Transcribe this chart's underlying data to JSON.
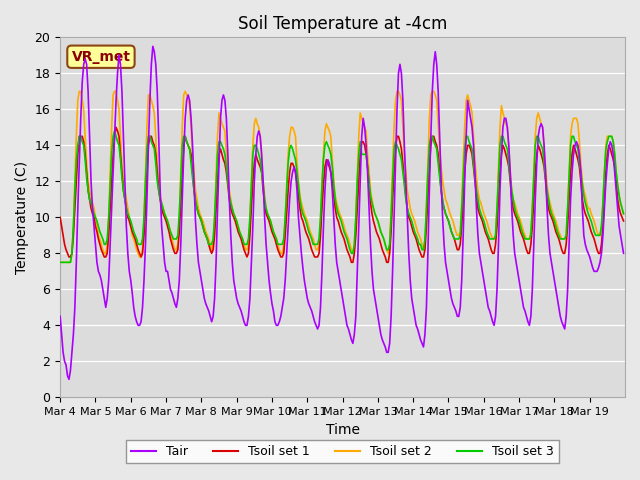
{
  "title": "Soil Temperature at -4cm",
  "xlabel": "Time",
  "ylabel": "Temperature (C)",
  "ylim": [
    0,
    20
  ],
  "annotation_text": "VR_met",
  "line_colors": {
    "Tair": "#aa00ff",
    "Tsoil_set1": "#dd0000",
    "Tsoil_set2": "#ffaa00",
    "Tsoil_set3": "#00cc00"
  },
  "legend_labels": [
    "Tair",
    "Tsoil set 1",
    "Tsoil set 2",
    "Tsoil set 3"
  ],
  "x_tick_labels": [
    "Mar 4",
    "Mar 5",
    "Mar 6",
    "Mar 7",
    "Mar 8",
    "Mar 9",
    "Mar 10",
    "Mar 11",
    "Mar 12",
    "Mar 13",
    "Mar 14",
    "Mar 15",
    "Mar 16",
    "Mar 17",
    "Mar 18",
    "Mar 19"
  ],
  "Tair_values": [
    4.5,
    3.5,
    2.5,
    2.0,
    1.8,
    1.2,
    1.0,
    1.5,
    2.5,
    3.5,
    5.0,
    7.5,
    10.5,
    13.0,
    15.5,
    17.5,
    18.5,
    18.8,
    18.5,
    17.0,
    14.5,
    12.0,
    10.5,
    9.5,
    8.5,
    7.5,
    7.0,
    6.8,
    6.5,
    6.0,
    5.5,
    5.0,
    5.5,
    6.5,
    8.5,
    10.5,
    12.5,
    14.5,
    16.5,
    18.0,
    19.0,
    18.5,
    17.0,
    14.5,
    12.0,
    9.5,
    8.0,
    7.0,
    6.5,
    5.8,
    5.0,
    4.5,
    4.2,
    4.0,
    4.0,
    4.2,
    5.0,
    6.5,
    8.5,
    11.0,
    14.0,
    16.5,
    18.5,
    19.5,
    19.2,
    18.5,
    17.0,
    14.5,
    11.5,
    9.5,
    8.5,
    7.5,
    7.0,
    7.0,
    6.5,
    6.0,
    5.8,
    5.5,
    5.2,
    5.0,
    5.5,
    6.5,
    8.5,
    11.0,
    13.5,
    15.5,
    16.5,
    16.8,
    16.5,
    15.5,
    14.0,
    12.0,
    9.8,
    8.5,
    7.5,
    7.0,
    6.5,
    6.0,
    5.5,
    5.2,
    5.0,
    4.8,
    4.5,
    4.2,
    4.5,
    5.5,
    7.5,
    10.5,
    13.0,
    15.5,
    16.5,
    16.8,
    16.5,
    15.5,
    13.5,
    11.0,
    9.0,
    7.5,
    6.5,
    6.0,
    5.5,
    5.2,
    5.0,
    4.8,
    4.5,
    4.2,
    4.0,
    4.0,
    4.5,
    5.5,
    7.5,
    9.5,
    12.0,
    13.5,
    14.5,
    14.8,
    14.5,
    13.5,
    12.0,
    10.0,
    8.5,
    7.5,
    6.5,
    5.8,
    5.2,
    4.8,
    4.2,
    4.0,
    4.0,
    4.2,
    4.5,
    5.0,
    5.5,
    6.5,
    8.0,
    9.5,
    11.0,
    12.0,
    12.5,
    12.8,
    12.5,
    11.5,
    10.0,
    9.0,
    8.0,
    7.2,
    6.5,
    6.0,
    5.5,
    5.2,
    5.0,
    4.8,
    4.5,
    4.2,
    4.0,
    3.8,
    4.0,
    5.0,
    7.0,
    9.5,
    11.5,
    12.8,
    13.2,
    13.0,
    12.5,
    11.5,
    10.0,
    8.5,
    7.5,
    7.0,
    6.5,
    6.0,
    5.5,
    5.0,
    4.5,
    4.0,
    3.8,
    3.5,
    3.2,
    3.0,
    3.5,
    4.5,
    7.0,
    9.5,
    12.0,
    14.5,
    15.5,
    15.0,
    14.0,
    12.5,
    10.5,
    8.5,
    7.0,
    6.0,
    5.5,
    5.0,
    4.5,
    4.0,
    3.5,
    3.2,
    3.0,
    2.8,
    2.5,
    2.5,
    3.0,
    4.5,
    7.0,
    10.0,
    13.0,
    16.0,
    18.0,
    18.5,
    18.0,
    16.5,
    14.0,
    12.0,
    10.0,
    8.0,
    6.5,
    5.5,
    5.0,
    4.5,
    4.0,
    3.8,
    3.5,
    3.2,
    3.0,
    2.8,
    3.5,
    5.0,
    8.0,
    11.5,
    14.5,
    17.0,
    18.5,
    19.2,
    18.5,
    17.0,
    14.5,
    12.0,
    10.0,
    8.5,
    7.5,
    7.0,
    6.5,
    6.0,
    5.5,
    5.2,
    5.0,
    4.8,
    4.5,
    4.5,
    5.0,
    6.5,
    9.0,
    12.0,
    14.5,
    16.5,
    16.0,
    15.5,
    15.0,
    14.0,
    12.5,
    10.5,
    9.0,
    8.0,
    7.5,
    7.0,
    6.5,
    6.0,
    5.5,
    5.0,
    4.8,
    4.5,
    4.2,
    4.0,
    4.5,
    6.0,
    8.5,
    11.5,
    13.5,
    15.0,
    15.5,
    15.5,
    15.0,
    14.0,
    12.5,
    10.5,
    9.0,
    8.0,
    7.5,
    7.0,
    6.5,
    6.0,
    5.5,
    5.0,
    4.8,
    4.5,
    4.2,
    4.0,
    4.5,
    6.0,
    8.5,
    11.0,
    13.0,
    14.5,
    15.0,
    15.2,
    15.0,
    14.0,
    12.5,
    10.5,
    9.0,
    8.0,
    7.5,
    7.0,
    6.5,
    6.0,
    5.5,
    5.0,
    4.5,
    4.2,
    4.0,
    3.8,
    4.5,
    6.0,
    8.5,
    11.0,
    12.5,
    13.5,
    14.0,
    14.2,
    14.0,
    13.5,
    12.5,
    10.5,
    9.0,
    8.5,
    8.2,
    8.0,
    7.8,
    7.5,
    7.2,
    7.0,
    7.0,
    7.0,
    7.2,
    7.5,
    8.0,
    9.0,
    10.5,
    12.0,
    13.0,
    13.8,
    14.2,
    14.0,
    13.5,
    12.5,
    11.5,
    10.5,
    9.5,
    9.0,
    8.5,
    8.0
  ],
  "Tsoil1_values": [
    10.0,
    9.5,
    9.0,
    8.5,
    8.2,
    8.0,
    7.8,
    7.8,
    8.0,
    9.0,
    10.5,
    12.0,
    13.5,
    14.5,
    14.5,
    14.5,
    14.2,
    13.5,
    12.5,
    11.5,
    11.0,
    10.5,
    10.2,
    10.0,
    9.5,
    9.2,
    8.8,
    8.5,
    8.2,
    8.0,
    7.8,
    7.8,
    8.0,
    9.0,
    10.5,
    12.0,
    13.5,
    14.5,
    15.0,
    14.8,
    14.5,
    13.5,
    12.5,
    11.5,
    11.0,
    10.5,
    10.0,
    9.8,
    9.5,
    9.2,
    9.0,
    8.8,
    8.5,
    8.2,
    8.0,
    7.8,
    8.0,
    9.0,
    10.5,
    12.5,
    14.0,
    14.5,
    14.5,
    14.2,
    14.0,
    13.5,
    12.5,
    11.5,
    11.0,
    10.5,
    10.2,
    10.0,
    9.8,
    9.5,
    9.2,
    8.8,
    8.5,
    8.2,
    8.0,
    8.0,
    8.2,
    9.2,
    10.8,
    12.5,
    14.0,
    14.5,
    14.2,
    14.0,
    13.8,
    13.5,
    12.5,
    11.5,
    10.8,
    10.5,
    10.2,
    10.0,
    9.8,
    9.5,
    9.2,
    9.0,
    8.8,
    8.5,
    8.2,
    8.0,
    8.2,
    9.0,
    10.5,
    12.0,
    13.5,
    13.8,
    13.5,
    13.2,
    13.0,
    12.5,
    11.8,
    11.0,
    10.5,
    10.2,
    10.0,
    9.8,
    9.5,
    9.2,
    9.0,
    8.8,
    8.5,
    8.2,
    8.0,
    7.8,
    8.0,
    9.0,
    10.5,
    12.0,
    13.0,
    13.5,
    13.2,
    13.0,
    12.8,
    12.5,
    11.5,
    10.8,
    10.2,
    10.0,
    9.8,
    9.5,
    9.2,
    9.0,
    8.8,
    8.5,
    8.2,
    8.0,
    7.8,
    7.8,
    8.0,
    9.0,
    10.2,
    11.5,
    12.5,
    13.0,
    13.0,
    12.8,
    12.5,
    12.0,
    11.2,
    10.5,
    10.0,
    9.8,
    9.5,
    9.2,
    9.0,
    8.8,
    8.5,
    8.2,
    8.0,
    7.8,
    7.8,
    7.8,
    8.0,
    9.0,
    10.5,
    11.8,
    12.8,
    13.2,
    13.0,
    12.8,
    12.5,
    12.0,
    11.2,
    10.5,
    10.0,
    9.8,
    9.5,
    9.2,
    9.0,
    8.8,
    8.5,
    8.2,
    8.0,
    7.8,
    7.5,
    7.5,
    8.0,
    9.0,
    10.5,
    12.0,
    13.5,
    14.2,
    14.2,
    14.0,
    13.5,
    12.8,
    11.8,
    10.8,
    10.2,
    9.8,
    9.5,
    9.2,
    9.0,
    8.8,
    8.5,
    8.2,
    8.0,
    7.8,
    7.5,
    7.5,
    8.0,
    9.2,
    11.0,
    12.5,
    13.8,
    14.5,
    14.5,
    14.2,
    13.8,
    13.0,
    12.0,
    11.2,
    10.5,
    10.0,
    9.8,
    9.5,
    9.2,
    9.0,
    8.8,
    8.5,
    8.2,
    8.0,
    7.8,
    7.8,
    8.2,
    9.5,
    11.2,
    12.8,
    14.0,
    14.5,
    14.5,
    14.2,
    14.0,
    13.5,
    12.5,
    11.5,
    10.8,
    10.5,
    10.2,
    10.0,
    9.8,
    9.5,
    9.2,
    9.0,
    8.8,
    8.5,
    8.2,
    8.2,
    8.5,
    9.5,
    11.0,
    12.5,
    13.5,
    14.0,
    14.0,
    13.8,
    13.5,
    12.8,
    12.0,
    11.2,
    10.5,
    10.2,
    10.0,
    9.8,
    9.5,
    9.2,
    9.0,
    8.8,
    8.5,
    8.2,
    8.0,
    8.0,
    8.5,
    9.5,
    11.0,
    12.5,
    13.5,
    14.0,
    13.8,
    13.5,
    13.2,
    12.8,
    12.0,
    11.0,
    10.5,
    10.2,
    10.0,
    9.8,
    9.5,
    9.2,
    9.0,
    8.8,
    8.5,
    8.2,
    8.0,
    8.0,
    8.5,
    9.5,
    11.0,
    12.5,
    13.5,
    14.0,
    13.8,
    13.5,
    13.2,
    12.8,
    12.0,
    11.0,
    10.5,
    10.2,
    10.0,
    9.8,
    9.5,
    9.2,
    9.0,
    8.8,
    8.5,
    8.2,
    8.0,
    8.0,
    8.5,
    9.5,
    11.0,
    12.5,
    13.5,
    14.0,
    13.8,
    13.5,
    13.2,
    12.8,
    12.0,
    11.0,
    10.5,
    10.2,
    10.0,
    9.8,
    9.5,
    9.2,
    9.0,
    8.8,
    8.5,
    8.2,
    8.0,
    8.0,
    8.5,
    9.5,
    11.0,
    12.5,
    13.5,
    14.0,
    13.8,
    13.5,
    13.2,
    12.8,
    12.0,
    11.0,
    10.5,
    10.2,
    10.0,
    9.8
  ],
  "Tsoil2_values": [
    7.5,
    7.5,
    7.5,
    7.5,
    7.5,
    7.5,
    7.5,
    7.5,
    8.0,
    9.5,
    12.0,
    14.5,
    16.5,
    17.0,
    17.0,
    16.5,
    16.0,
    14.5,
    13.0,
    12.0,
    11.5,
    11.0,
    10.8,
    10.5,
    10.0,
    9.5,
    9.0,
    8.8,
    8.5,
    8.2,
    8.0,
    8.0,
    8.5,
    10.0,
    12.5,
    15.0,
    16.8,
    17.0,
    17.0,
    16.5,
    16.0,
    14.5,
    13.0,
    12.0,
    11.5,
    11.0,
    10.5,
    10.0,
    9.5,
    9.0,
    8.8,
    8.5,
    8.2,
    8.0,
    7.8,
    7.8,
    8.2,
    9.8,
    12.5,
    15.0,
    16.8,
    16.8,
    16.5,
    16.2,
    15.8,
    14.5,
    13.0,
    12.0,
    11.2,
    10.8,
    10.5,
    10.2,
    10.0,
    9.8,
    9.5,
    9.2,
    8.8,
    8.5,
    8.2,
    8.2,
    8.5,
    10.0,
    12.5,
    15.0,
    16.8,
    17.0,
    16.8,
    16.5,
    16.2,
    15.0,
    13.5,
    12.5,
    11.5,
    11.0,
    10.5,
    10.2,
    10.0,
    9.8,
    9.5,
    9.2,
    9.0,
    8.8,
    8.5,
    8.2,
    8.5,
    10.0,
    12.2,
    14.5,
    15.8,
    15.5,
    15.2,
    15.0,
    14.8,
    13.5,
    12.5,
    11.5,
    11.0,
    10.5,
    10.2,
    10.0,
    9.8,
    9.5,
    9.2,
    9.0,
    8.8,
    8.5,
    8.2,
    8.2,
    8.5,
    9.8,
    12.0,
    14.0,
    15.2,
    15.5,
    15.2,
    15.0,
    14.5,
    13.2,
    12.0,
    11.2,
    10.5,
    10.2,
    10.0,
    9.8,
    9.5,
    9.2,
    9.0,
    8.8,
    8.5,
    8.2,
    8.0,
    8.0,
    8.5,
    9.8,
    11.8,
    13.5,
    14.5,
    15.0,
    15.0,
    14.8,
    14.5,
    13.0,
    12.0,
    11.2,
    10.8,
    10.5,
    10.2,
    10.0,
    9.8,
    9.5,
    9.2,
    9.0,
    8.8,
    8.5,
    8.2,
    8.2,
    8.5,
    9.8,
    11.8,
    13.5,
    14.8,
    15.2,
    15.0,
    14.8,
    14.5,
    13.2,
    12.0,
    11.2,
    10.8,
    10.5,
    10.2,
    10.0,
    9.8,
    9.5,
    9.2,
    9.0,
    8.8,
    8.5,
    8.2,
    8.0,
    8.5,
    10.0,
    12.2,
    14.5,
    15.8,
    15.5,
    15.2,
    15.0,
    14.8,
    13.5,
    12.5,
    11.5,
    11.0,
    10.5,
    10.2,
    10.0,
    9.8,
    9.5,
    9.2,
    9.0,
    8.8,
    8.5,
    8.2,
    8.0,
    8.5,
    10.5,
    12.8,
    15.0,
    16.5,
    17.0,
    17.0,
    16.8,
    16.5,
    15.0,
    13.5,
    12.5,
    11.5,
    11.0,
    10.5,
    10.2,
    10.0,
    9.8,
    9.5,
    9.2,
    9.0,
    8.8,
    8.5,
    8.2,
    8.5,
    10.5,
    13.0,
    15.5,
    16.8,
    17.0,
    17.0,
    16.8,
    16.5,
    15.2,
    13.8,
    12.8,
    12.0,
    11.5,
    11.0,
    10.8,
    10.5,
    10.2,
    10.0,
    9.8,
    9.5,
    9.2,
    9.0,
    9.0,
    9.2,
    10.8,
    13.0,
    15.0,
    16.5,
    16.8,
    16.5,
    16.2,
    15.8,
    14.5,
    13.2,
    12.2,
    11.5,
    11.0,
    10.8,
    10.5,
    10.2,
    10.0,
    9.8,
    9.5,
    9.2,
    9.0,
    8.8,
    8.8,
    9.0,
    10.5,
    12.8,
    15.0,
    16.2,
    15.8,
    15.5,
    15.2,
    15.0,
    13.8,
    12.5,
    11.5,
    11.0,
    10.8,
    10.5,
    10.2,
    10.0,
    9.8,
    9.5,
    9.2,
    9.0,
    8.8,
    8.8,
    8.8,
    9.2,
    10.5,
    12.5,
    14.5,
    15.5,
    15.8,
    15.5,
    15.2,
    15.0,
    13.8,
    12.8,
    11.8,
    11.2,
    10.8,
    10.5,
    10.2,
    10.0,
    9.8,
    9.5,
    9.2,
    9.0,
    8.8,
    8.8,
    8.8,
    9.0,
    10.5,
    12.5,
    14.5,
    15.2,
    15.5,
    15.5,
    15.5,
    15.2,
    14.2,
    13.0,
    12.0,
    11.5,
    11.2,
    10.8,
    10.5,
    10.5,
    10.2,
    10.0,
    9.8,
    9.5,
    9.2,
    9.0,
    9.0,
    9.5,
    10.8,
    12.5,
    14.0,
    14.5,
    14.5,
    14.5,
    14.5,
    14.2,
    13.5,
    12.5,
    11.8,
    11.2,
    10.8,
    10.5,
    10.2
  ],
  "Tsoil3_values": [
    7.5,
    7.5,
    7.5,
    7.5,
    7.5,
    7.5,
    7.5,
    7.5,
    8.0,
    9.5,
    11.5,
    13.2,
    14.0,
    14.5,
    14.5,
    14.2,
    14.0,
    13.2,
    12.2,
    11.5,
    11.0,
    10.8,
    10.5,
    10.2,
    10.0,
    9.8,
    9.5,
    9.2,
    9.0,
    8.8,
    8.5,
    8.5,
    8.8,
    10.0,
    11.8,
    13.5,
    14.5,
    14.8,
    14.5,
    14.2,
    14.0,
    13.2,
    12.2,
    11.5,
    11.0,
    10.5,
    10.2,
    10.0,
    9.8,
    9.5,
    9.2,
    9.0,
    8.8,
    8.5,
    8.5,
    8.5,
    8.8,
    10.0,
    12.0,
    13.8,
    14.5,
    14.5,
    14.2,
    14.0,
    13.8,
    13.0,
    12.0,
    11.5,
    11.0,
    10.8,
    10.5,
    10.2,
    10.0,
    9.8,
    9.5,
    9.2,
    9.0,
    8.8,
    8.8,
    8.8,
    9.0,
    10.2,
    12.0,
    14.0,
    14.5,
    14.5,
    14.2,
    14.0,
    13.8,
    13.0,
    12.2,
    11.5,
    11.0,
    10.5,
    10.2,
    10.0,
    9.8,
    9.5,
    9.2,
    9.0,
    8.8,
    8.5,
    8.5,
    8.5,
    8.8,
    10.0,
    11.8,
    13.5,
    14.2,
    14.2,
    14.0,
    13.8,
    13.5,
    12.8,
    12.0,
    11.2,
    10.8,
    10.5,
    10.2,
    10.0,
    9.8,
    9.5,
    9.2,
    9.0,
    8.8,
    8.5,
    8.5,
    8.5,
    8.8,
    10.0,
    11.8,
    13.5,
    14.0,
    14.0,
    13.8,
    13.5,
    13.2,
    12.5,
    11.8,
    11.0,
    10.5,
    10.2,
    10.0,
    9.8,
    9.5,
    9.2,
    9.0,
    8.8,
    8.5,
    8.5,
    8.5,
    8.5,
    8.8,
    10.0,
    11.5,
    13.0,
    13.8,
    14.0,
    13.8,
    13.5,
    13.2,
    12.5,
    11.8,
    11.0,
    10.5,
    10.2,
    10.0,
    9.8,
    9.5,
    9.2,
    9.0,
    8.8,
    8.5,
    8.5,
    8.5,
    8.5,
    8.8,
    10.0,
    11.8,
    13.2,
    14.0,
    14.2,
    14.0,
    13.8,
    13.5,
    12.8,
    11.8,
    11.0,
    10.5,
    10.2,
    10.0,
    9.8,
    9.5,
    9.2,
    9.0,
    8.8,
    8.5,
    8.2,
    8.0,
    8.0,
    8.5,
    10.0,
    12.0,
    13.5,
    14.2,
    13.5,
    13.5,
    13.5,
    13.5,
    12.8,
    12.0,
    11.2,
    10.8,
    10.5,
    10.2,
    10.0,
    9.8,
    9.5,
    9.2,
    9.0,
    8.8,
    8.5,
    8.2,
    8.2,
    8.5,
    10.0,
    12.0,
    13.8,
    14.2,
    14.0,
    13.8,
    13.5,
    13.2,
    12.5,
    11.8,
    11.0,
    10.5,
    10.2,
    10.0,
    9.8,
    9.5,
    9.2,
    9.0,
    8.8,
    8.5,
    8.5,
    8.2,
    8.2,
    8.8,
    10.5,
    12.5,
    14.0,
    14.5,
    14.5,
    14.2,
    14.0,
    13.8,
    13.0,
    12.2,
    11.5,
    11.0,
    10.5,
    10.2,
    10.0,
    9.8,
    9.5,
    9.2,
    9.0,
    8.8,
    8.8,
    8.8,
    8.8,
    9.0,
    10.5,
    12.2,
    13.8,
    14.5,
    14.5,
    14.2,
    14.0,
    13.8,
    13.0,
    12.2,
    11.5,
    11.0,
    10.5,
    10.2,
    10.0,
    9.8,
    9.5,
    9.2,
    9.0,
    8.8,
    8.8,
    8.8,
    8.8,
    9.0,
    10.5,
    12.2,
    14.0,
    14.5,
    14.5,
    14.2,
    14.0,
    13.8,
    13.0,
    12.2,
    11.5,
    11.0,
    10.5,
    10.2,
    10.0,
    9.8,
    9.5,
    9.2,
    9.0,
    8.8,
    8.8,
    8.8,
    8.8,
    9.0,
    10.5,
    12.2,
    14.0,
    14.5,
    14.5,
    14.2,
    14.0,
    13.8,
    13.0,
    12.2,
    11.5,
    11.0,
    10.5,
    10.2,
    10.0,
    9.8,
    9.5,
    9.2,
    9.0,
    8.8,
    8.8,
    8.8,
    8.8,
    9.0,
    10.5,
    12.2,
    14.0,
    14.5,
    14.5,
    14.2,
    14.0,
    13.8,
    13.0,
    12.5,
    11.8,
    11.2,
    10.8,
    10.5,
    10.2,
    10.0,
    9.8,
    9.5,
    9.2,
    9.0,
    9.0,
    9.0,
    9.0,
    9.5,
    10.8,
    12.5,
    13.8,
    14.2,
    14.5,
    14.5,
    14.5,
    14.2,
    13.5,
    12.5,
    11.8,
    11.2,
    10.8,
    10.5,
    10.2
  ]
}
